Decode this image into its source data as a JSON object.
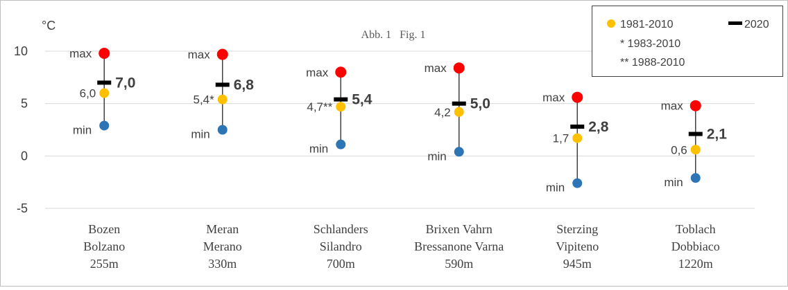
{
  "chart_data": {
    "type": "scatter",
    "title": "Abb. 1   Fig. 1",
    "ylabel": "°C",
    "ylim": [
      -5,
      10
    ],
    "yticks": [
      -5,
      0,
      5,
      10
    ],
    "grid": true,
    "legend_position": "top-right",
    "categories": [
      [
        "Bozen",
        "Bolzano",
        "255m"
      ],
      [
        "Meran",
        "Merano",
        "330m"
      ],
      [
        "Schlanders",
        "Silandro",
        "700m"
      ],
      [
        "Brixen Vahrn",
        "Bressanone Varna",
        "590m"
      ],
      [
        "Sterzing",
        "Vipiteno",
        "945m"
      ],
      [
        "Toblach",
        "Dobbiaco",
        "1220m"
      ]
    ],
    "series": [
      {
        "name": "1981-2010",
        "values": [
          6.0,
          5.4,
          4.7,
          4.2,
          1.7,
          0.6
        ],
        "labels": [
          "6,0",
          "5,4*",
          "4,7**",
          "4,2",
          "1,7",
          "0,6"
        ]
      },
      {
        "name": "2020",
        "values": [
          7.0,
          6.8,
          5.4,
          5.0,
          2.8,
          2.1
        ],
        "labels": [
          "7,0",
          "6,8",
          "5,4",
          "5,0",
          "2,8",
          "2,1"
        ]
      },
      {
        "values": [
          9.8,
          9.7,
          8.0,
          8.4,
          5.6,
          4.8
        ],
        "label": "max"
      },
      {
        "values": [
          2.9,
          2.5,
          1.1,
          0.4,
          -2.6,
          -2.1
        ],
        "label": "min"
      }
    ],
    "legend_notes": [
      "* 1983-2010",
      "** 1988-2010"
    ],
    "colors": {
      "mean": "#FFC000",
      "current": "#000000",
      "max": "#FF0000",
      "min": "#2E75B6",
      "whisker": "#404040",
      "grid": "#D9D9D9",
      "text": "#404040"
    }
  }
}
